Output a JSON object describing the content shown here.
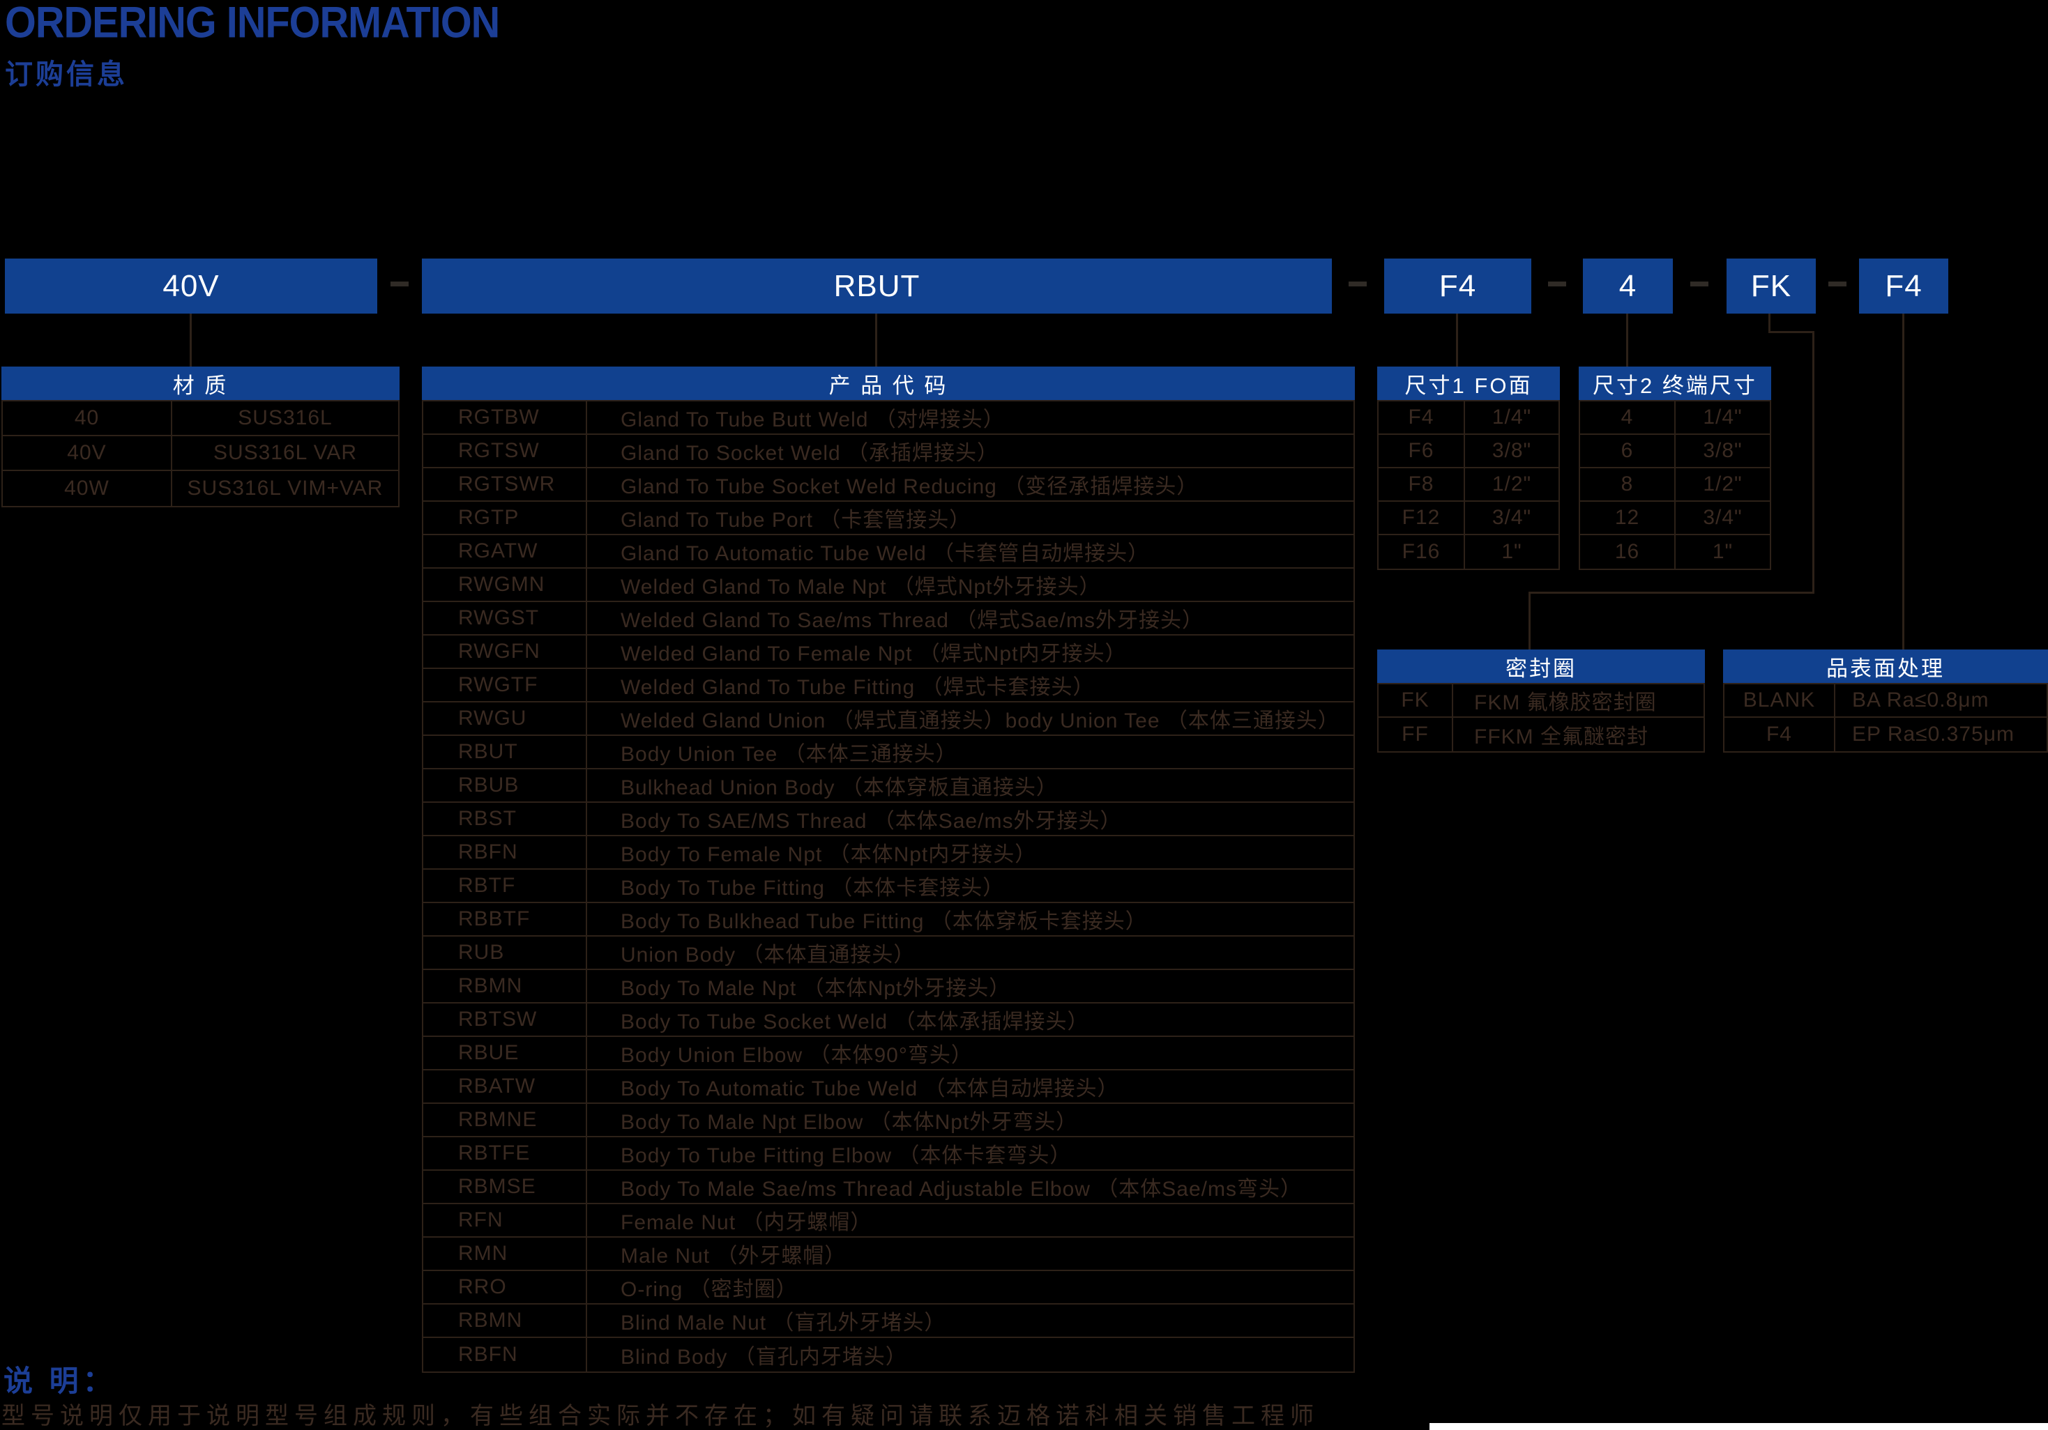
{
  "header": {
    "title": "ORDERING INFORMATION",
    "subtitle": "订购信息"
  },
  "code_string": {
    "boxes": [
      "40V",
      "RBUT",
      "F4",
      "4",
      "FK",
      "F4"
    ]
  },
  "tables": {
    "material": {
      "title": "材 质",
      "rows": [
        [
          "40",
          "SUS316L"
        ],
        [
          "40V",
          "SUS316L VAR"
        ],
        [
          "40W",
          "SUS316L VIM+VAR"
        ]
      ]
    },
    "product_code": {
      "title": "产 品 代 码",
      "rows": [
        [
          "RGTBW",
          "Gland To Tube Butt Weld （对焊接头）"
        ],
        [
          "RGTSW",
          "Gland To Socket Weld （承插焊接头）"
        ],
        [
          "RGTSWR",
          "Gland To Tube Socket Weld Reducing （变径承插焊接头）"
        ],
        [
          "RGTP",
          "Gland To Tube Port （卡套管接头）"
        ],
        [
          "RGATW",
          "Gland To Automatic Tube Weld （卡套管自动焊接头）"
        ],
        [
          "RWGMN",
          "Welded Gland To Male Npt （焊式Npt外牙接头）"
        ],
        [
          "RWGST",
          "Welded Gland To Sae/ms Thread （焊式Sae/ms外牙接头）"
        ],
        [
          "RWGFN",
          "Welded Gland To Female Npt （焊式Npt内牙接头）"
        ],
        [
          "RWGTF",
          "Welded Gland To Tube Fitting （焊式卡套接头）"
        ],
        [
          "RWGU",
          "Welded Gland Union （焊式直通接头）body Union Tee （本体三通接头）"
        ],
        [
          "RBUT",
          "Body Union Tee （本体三通接头）"
        ],
        [
          "RBUB",
          "Bulkhead Union Body （本体穿板直通接头）"
        ],
        [
          "RBST",
          "Body To SAE/MS Thread （本体Sae/ms外牙接头）"
        ],
        [
          "RBFN",
          "Body To Female Npt （本体Npt内牙接头）"
        ],
        [
          "RBTF",
          "Body To Tube Fitting （本体卡套接头）"
        ],
        [
          "RBBTF",
          "Body To Bulkhead Tube Fitting （本体穿板卡套接头）"
        ],
        [
          "RUB",
          "Union Body （本体直通接头）"
        ],
        [
          "RBMN",
          "Body To Male Npt （本体Npt外牙接头）"
        ],
        [
          "RBTSW",
          "Body To Tube Socket Weld （本体承插焊接头）"
        ],
        [
          "RBUE",
          "Body Union Elbow （本体90°弯头）"
        ],
        [
          "RBATW",
          "Body To Automatic Tube Weld （本体自动焊接头）"
        ],
        [
          "RBMNE",
          "Body To Male Npt Elbow （本体Npt外牙弯头）"
        ],
        [
          "RBTFE",
          "Body To Tube Fitting Elbow （本体卡套弯头）"
        ],
        [
          "RBMSE",
          "Body To Male Sae/ms Thread Adjustable Elbow （本体Sae/ms弯头）"
        ],
        [
          "RFN",
          "Female Nut （内牙螺帽）"
        ],
        [
          "RMN",
          "Male Nut （外牙螺帽）"
        ],
        [
          "RRO",
          "O-ring （密封圈）"
        ],
        [
          "RBMN",
          "Blind Male Nut （盲孔外牙堵头）"
        ],
        [
          "RBFN",
          "Blind Body （盲孔内牙堵头）"
        ]
      ]
    },
    "size1": {
      "title": "尺寸1 FO面",
      "rows": [
        [
          "F4",
          "1/4\""
        ],
        [
          "F6",
          "3/8\""
        ],
        [
          "F8",
          "1/2\""
        ],
        [
          "F12",
          "3/4\""
        ],
        [
          "F16",
          "1\""
        ]
      ]
    },
    "size2": {
      "title": "尺寸2 终端尺寸",
      "rows": [
        [
          "4",
          "1/4\""
        ],
        [
          "6",
          "3/8\""
        ],
        [
          "8",
          "1/2\""
        ],
        [
          "12",
          "3/4\""
        ],
        [
          "16",
          "1\""
        ]
      ]
    },
    "seal": {
      "title": "密封圈",
      "rows": [
        [
          "FK",
          "FKM 氟橡胶密封圈"
        ],
        [
          "FF",
          "FFKM 全氟醚密封"
        ]
      ]
    },
    "surface": {
      "title": "品表面处理",
      "rows": [
        [
          "BLANK",
          "BA Ra≤0.8μm"
        ],
        [
          "F4",
          "EP Ra≤0.375μm"
        ]
      ]
    }
  },
  "footer": {
    "note_label": "说 明：",
    "note_text": "型号说明仅用于说明型号组成规则，有些组合实际并不存在；如有疑问请联系迈格诺科相关销售工程师"
  },
  "colors": {
    "brand_blue": "#11418f",
    "title_blue": "#1c3e96",
    "line_color": "#2d2118",
    "cell_text": "#3a2a21"
  }
}
